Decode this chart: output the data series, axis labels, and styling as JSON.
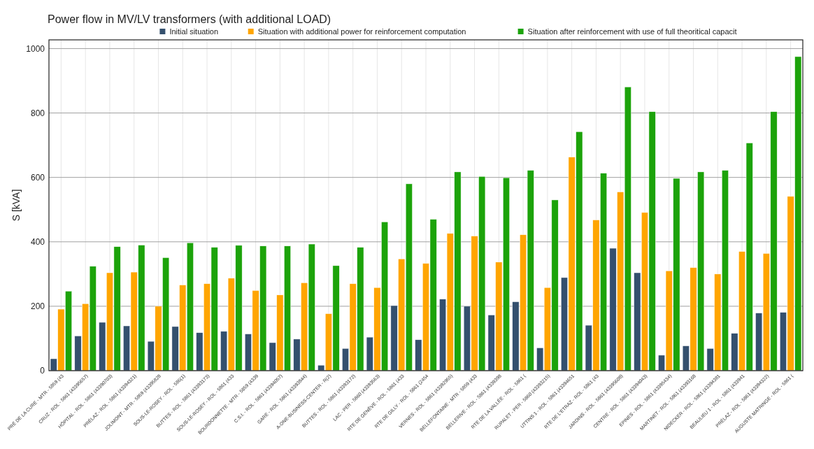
{
  "chart_data": {
    "type": "bar",
    "title": "Power flow in MV/LV transformers (with additional LOAD)",
    "ylabel": "S [kVA]",
    "categories": [
      "PRÉ DE LA CURE - MTR - 5859 (43",
      "CRUZ - ROL - 5861 (43395657)",
      "HÔPITAL - ROL - 5861 (43390703)",
      "PRÉLAZ - ROL - 5861 (43394321)",
      "JOLIMONT - MTR - 5859 (43395828",
      "SOUS-LE-ROSEY - ROL - 586(1)",
      "BUTTES - ROL - 5861 (43393173)",
      "SOUS-LE-ROSEY - ROL - 5861 (433",
      "BOURDONNETTE - MTR - 5859 (4339",
      "C.S.I. - ROL - 5861 (43394057)",
      "GARE - ROL - 5861 (43393844)",
      "A-ONE-BUSINESS-CENTER - R(2)",
      "BUTTES - ROL - 5861 (43393172)",
      "LAC - PER - 5860 (43393563)",
      "RTE DE GENÈVE - ROL - 5861 (433",
      "RTE DE GILLY - ROL - 5861 (2454",
      "VERNES - ROL - 5861 (43392955)",
      "BELLEFONTAINE - MTR - 5859 (433",
      "BELLERIVE - ROL - 5861 (4339398",
      "RTE DE LA VALLÉE - ROL - 5861 (",
      "RUPALET - PER - 5860 (43393215)",
      "UTTINS 1 - ROL - 5861 (43394651",
      "RTE DE L'ETRAZ - ROL - 5861 (43",
      "JARDINS - ROL - 5861 (43395608)",
      "CENTRE - ROL - 5861 (43394043)",
      "EPINES - ROL - 5861 (43395434)",
      "MARTINET - ROL - 5861 (43393168",
      "NIDECKER - ROL - 5861 (43394381",
      "BEAULIEU 1 - ROL - 5861 (433941",
      "PRÉLAZ - ROL - 5861 (43394322)",
      "AUGUSTE MATRINGE - ROL - 5861 ("
    ],
    "series": [
      {
        "name": "Initial situation",
        "color": "#34506e",
        "values": [
          37,
          108,
          150,
          139,
          91,
          137,
          118,
          122,
          114,
          87,
          98,
          17,
          69,
          104,
          202,
          96,
          222,
          200,
          173,
          214,
          71,
          289,
          141,
          380,
          304,
          48,
          77,
          69,
          116,
          179,
          181
        ]
      },
      {
        "name": "Situation with additional power for reinforcement computation",
        "color": "#ffa500",
        "values": [
          191,
          208,
          304,
          306,
          200,
          266,
          270,
          287,
          249,
          235,
          273,
          177,
          270,
          258,
          347,
          333,
          426,
          418,
          337,
          422,
          258,
          663,
          468,
          555,
          491,
          310,
          320,
          300,
          370,
          364,
          541
        ]
      },
      {
        "name": "Situation after reinforcement with use of full theoritical capacit",
        "color": "#1ca30a",
        "values": [
          247,
          324,
          385,
          390,
          351,
          397,
          383,
          389,
          387,
          387,
          393,
          326,
          383,
          462,
          580,
          470,
          617,
          603,
          599,
          622,
          530,
          742,
          613,
          881,
          804,
          597,
          617,
          622,
          707,
          804,
          975
        ]
      }
    ],
    "ylim": [
      0,
      1027
    ],
    "yticks": [
      0,
      200,
      400,
      600,
      800,
      1000
    ],
    "grid": true,
    "legend": "top right"
  }
}
